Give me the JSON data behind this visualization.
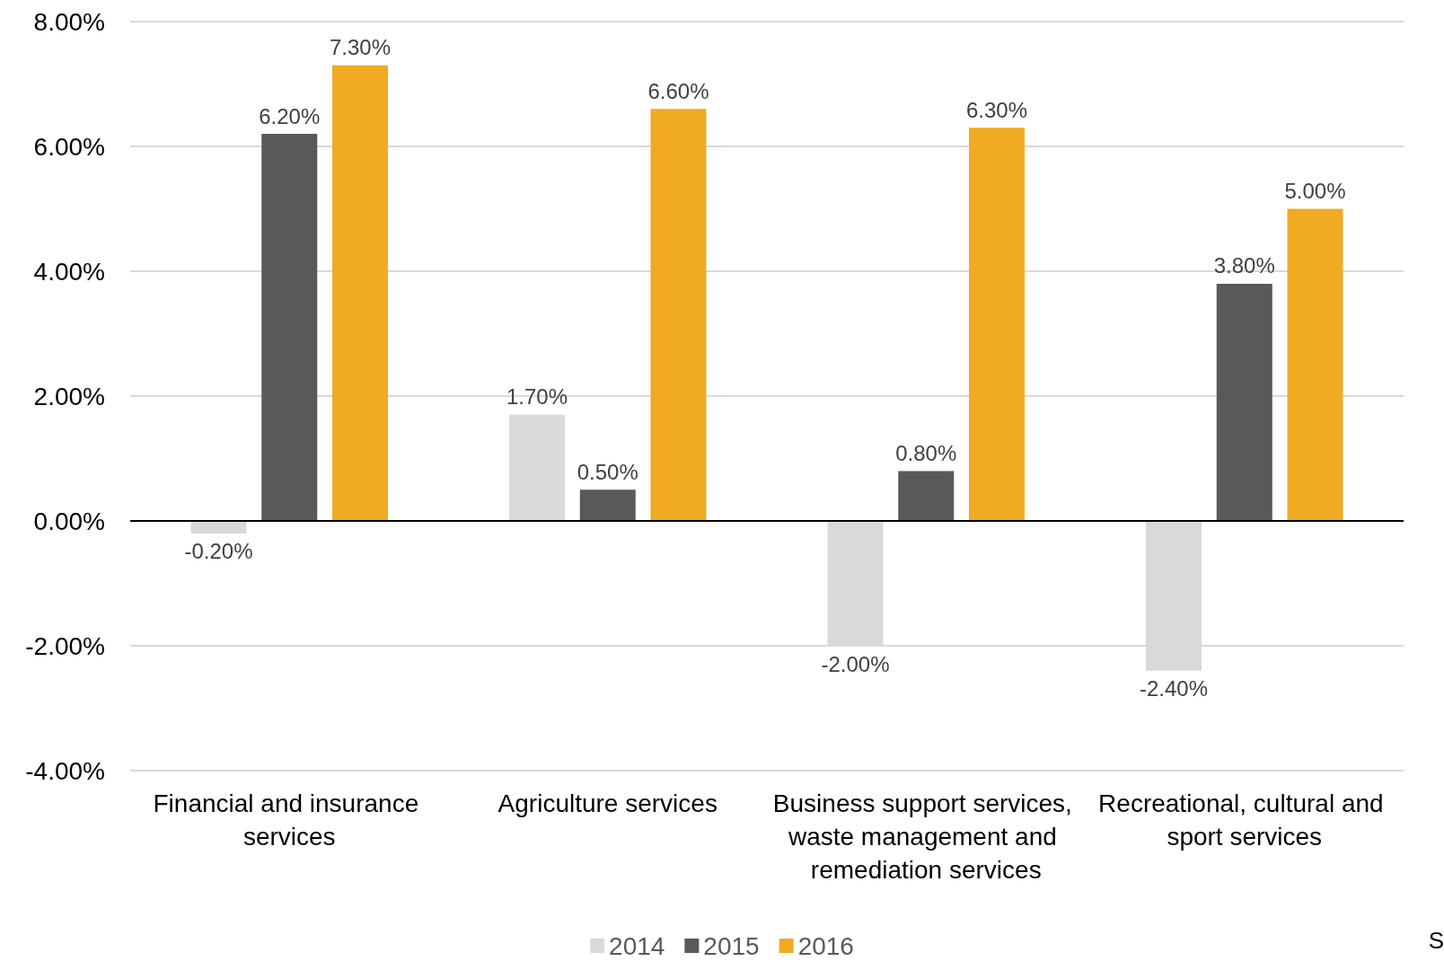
{
  "chart_data": {
    "type": "bar",
    "categories": [
      "Financial and insurance services",
      "Agriculture services",
      "Business support services, waste management and remediation services",
      "Recreational, cultural and sport services"
    ],
    "series": [
      {
        "name": "2014",
        "color": "#d9d9d9",
        "values": [
          -0.2,
          1.7,
          -2.0,
          -2.4
        ],
        "value_labels": [
          "-0.20%",
          "1.70%",
          "-2.00%",
          "-2.40%"
        ]
      },
      {
        "name": "2015",
        "color": "#595959",
        "values": [
          6.2,
          0.5,
          0.8,
          3.8
        ],
        "value_labels": [
          "6.20%",
          "0.50%",
          "0.80%",
          "3.80%"
        ]
      },
      {
        "name": "2016",
        "color": "#f0ab22",
        "values": [
          7.3,
          6.6,
          6.3,
          5.0
        ],
        "value_labels": [
          "7.30%",
          "6.60%",
          "6.30%",
          "5.00%"
        ]
      }
    ],
    "ylim": [
      -4,
      8
    ],
    "yticks": [
      {
        "value": -4,
        "label": "-4.00%"
      },
      {
        "value": -2,
        "label": "-2.00%"
      },
      {
        "value": 0,
        "label": "0.00%"
      },
      {
        "value": 2,
        "label": "2.00%"
      },
      {
        "value": 4,
        "label": "4.00%"
      },
      {
        "value": 6,
        "label": "6.00%"
      },
      {
        "value": 8,
        "label": "8.00%"
      }
    ],
    "grid": "y",
    "legend": "bottom",
    "annotations": [
      "S"
    ]
  }
}
